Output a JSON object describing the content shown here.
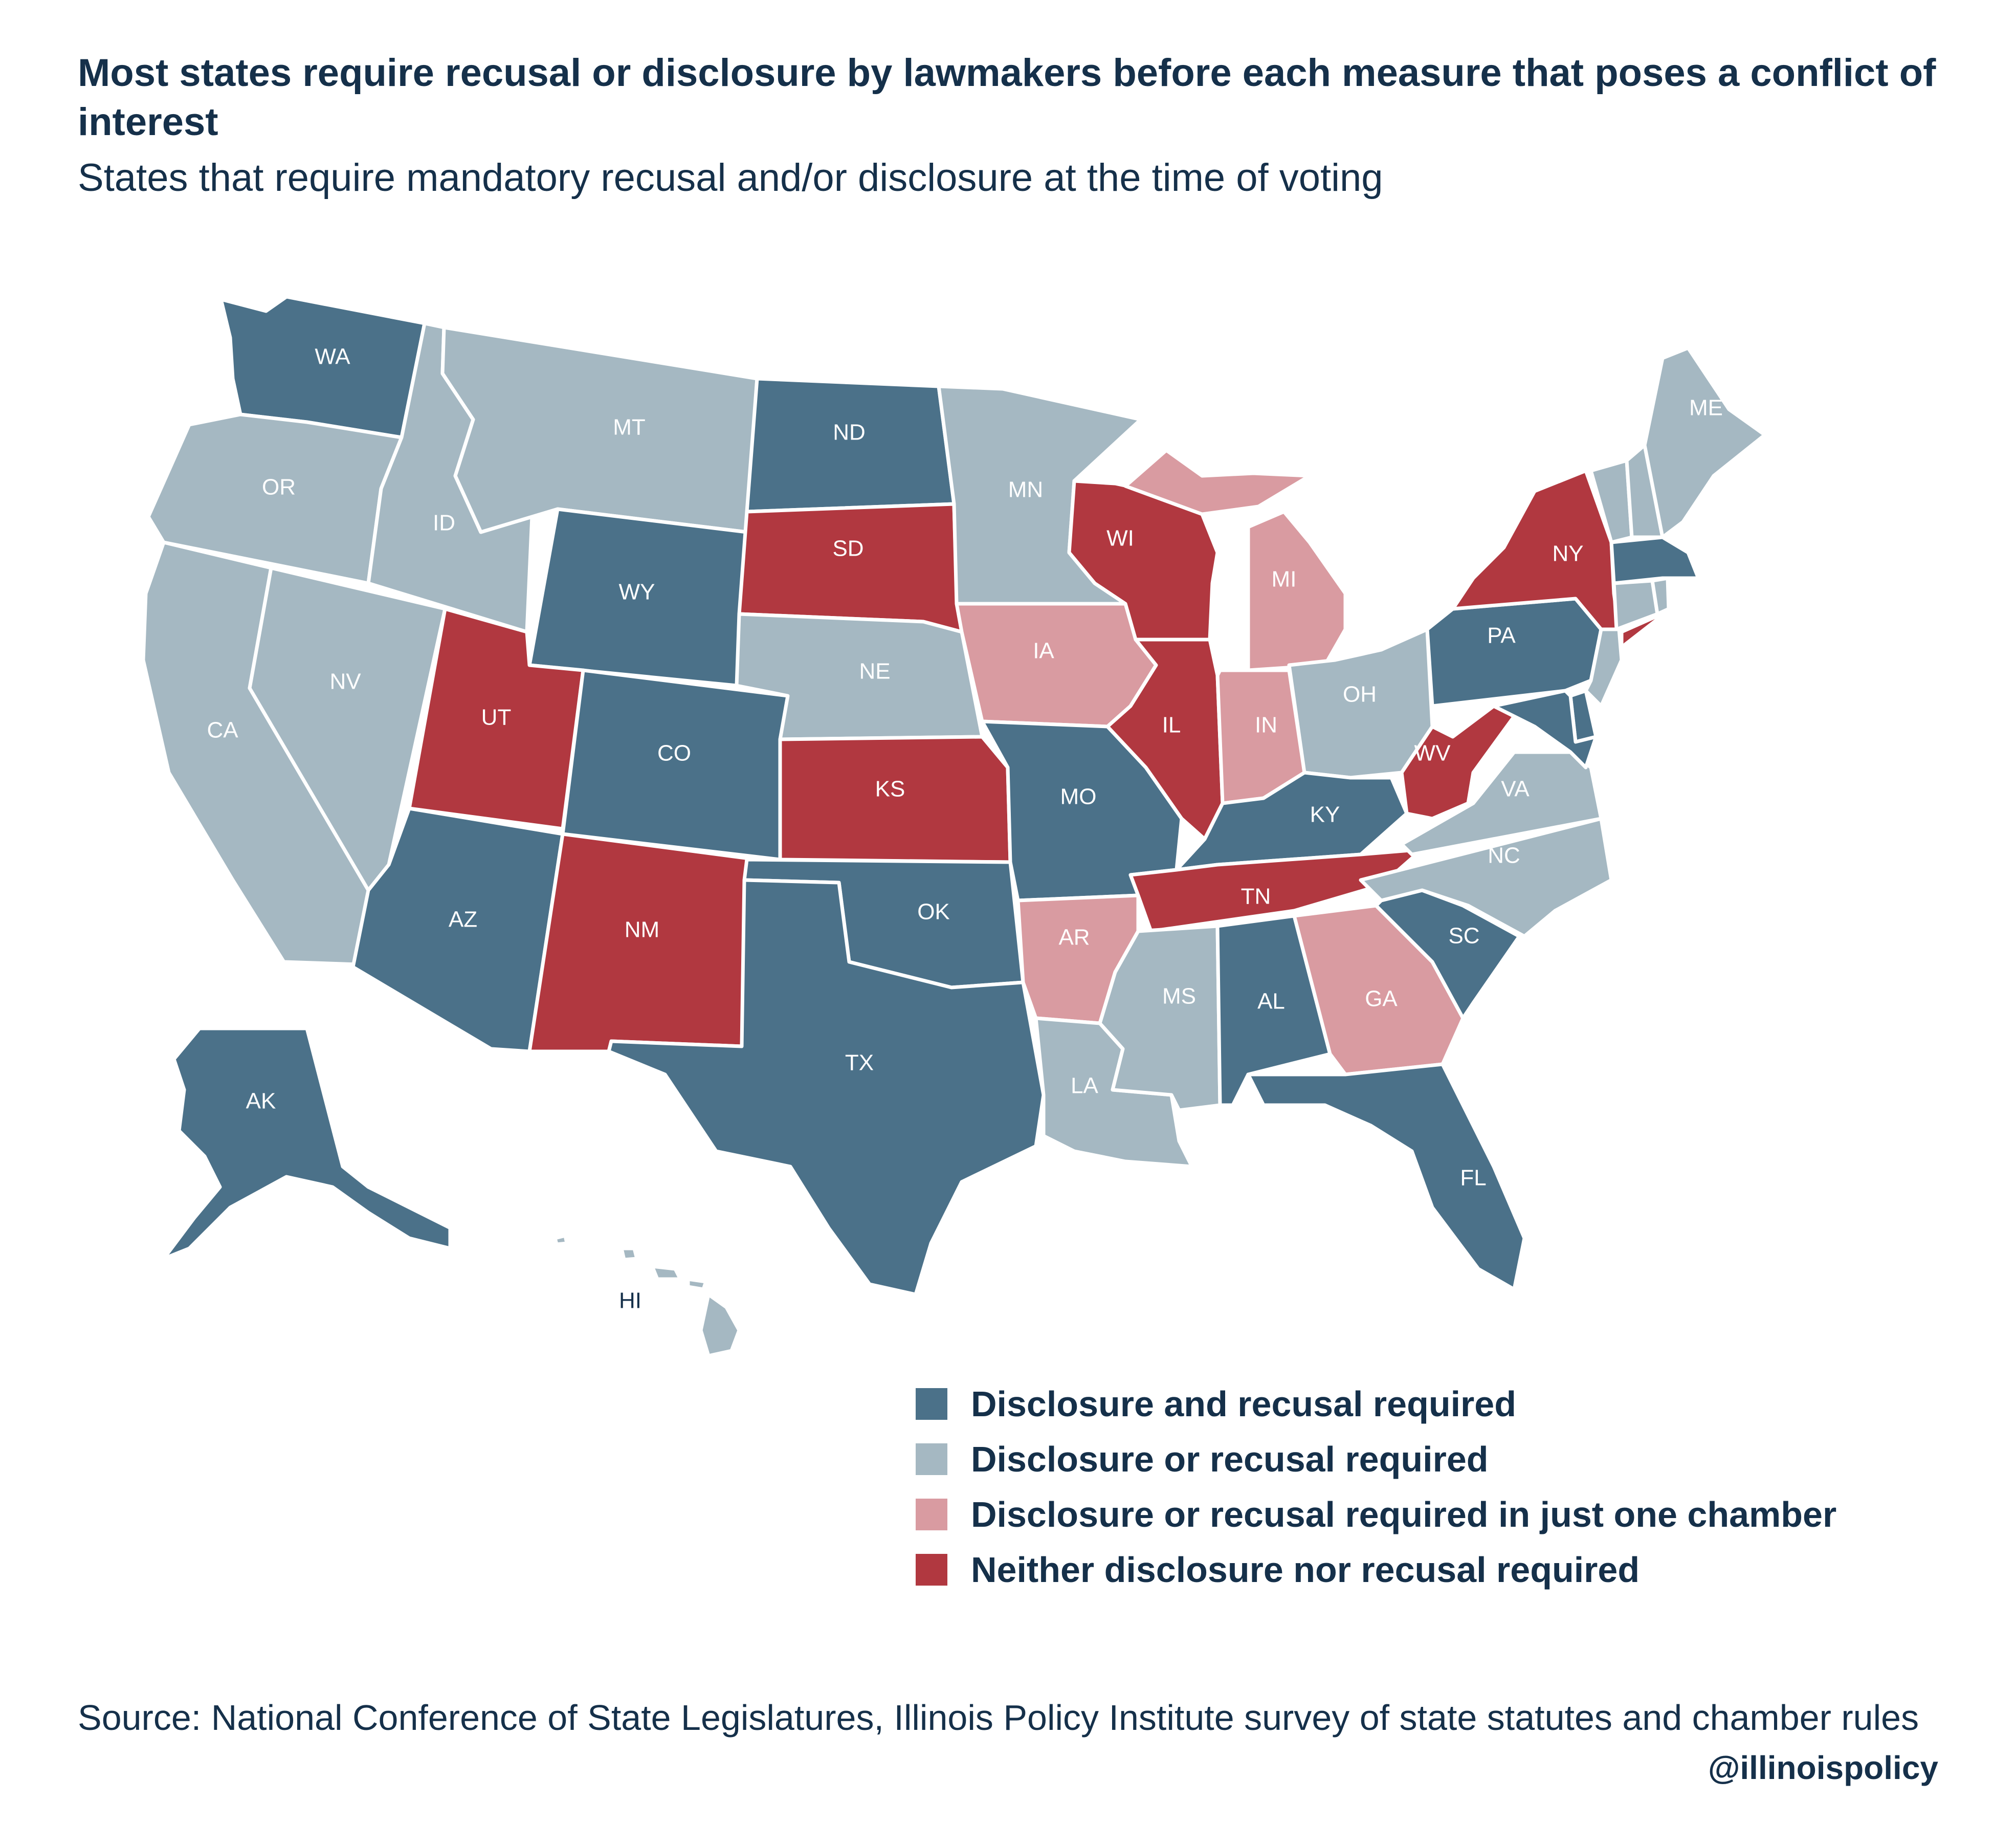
{
  "title": "Most states require recusal or disclosure by lawmakers before each measure that poses a conflict of interest",
  "subtitle": "States that require mandatory recusal and/or disclosure at the time of voting",
  "colors": {
    "both": "#4b7189",
    "either": "#a5b8c2",
    "one_chamber": "#d99ba1",
    "neither": "#b13840",
    "text": "#15304a"
  },
  "legend": [
    {
      "key": "both",
      "label": "Disclosure and recusal required"
    },
    {
      "key": "either",
      "label": "Disclosure or recusal required"
    },
    {
      "key": "one_chamber",
      "label": "Disclosure or recusal required in just one chamber"
    },
    {
      "key": "neither",
      "label": "Neither disclosure nor recusal required"
    }
  ],
  "states": [
    {
      "abbr": "WA",
      "category": "both"
    },
    {
      "abbr": "OR",
      "category": "either"
    },
    {
      "abbr": "CA",
      "category": "either"
    },
    {
      "abbr": "NV",
      "category": "either"
    },
    {
      "abbr": "ID",
      "category": "either"
    },
    {
      "abbr": "MT",
      "category": "either"
    },
    {
      "abbr": "WY",
      "category": "both"
    },
    {
      "abbr": "UT",
      "category": "neither"
    },
    {
      "abbr": "AZ",
      "category": "both"
    },
    {
      "abbr": "CO",
      "category": "both"
    },
    {
      "abbr": "NM",
      "category": "neither"
    },
    {
      "abbr": "ND",
      "category": "both"
    },
    {
      "abbr": "SD",
      "category": "neither"
    },
    {
      "abbr": "NE",
      "category": "either"
    },
    {
      "abbr": "KS",
      "category": "neither"
    },
    {
      "abbr": "OK",
      "category": "both"
    },
    {
      "abbr": "TX",
      "category": "both"
    },
    {
      "abbr": "MN",
      "category": "either"
    },
    {
      "abbr": "IA",
      "category": "one_chamber"
    },
    {
      "abbr": "MO",
      "category": "both"
    },
    {
      "abbr": "AR",
      "category": "one_chamber"
    },
    {
      "abbr": "LA",
      "category": "either"
    },
    {
      "abbr": "WI",
      "category": "neither"
    },
    {
      "abbr": "IL",
      "category": "neither"
    },
    {
      "abbr": "MI",
      "category": "one_chamber"
    },
    {
      "abbr": "IN",
      "category": "one_chamber"
    },
    {
      "abbr": "OH",
      "category": "either"
    },
    {
      "abbr": "KY",
      "category": "both"
    },
    {
      "abbr": "TN",
      "category": "neither"
    },
    {
      "abbr": "MS",
      "category": "either"
    },
    {
      "abbr": "AL",
      "category": "both"
    },
    {
      "abbr": "GA",
      "category": "one_chamber"
    },
    {
      "abbr": "FL",
      "category": "both"
    },
    {
      "abbr": "SC",
      "category": "both"
    },
    {
      "abbr": "NC",
      "category": "either"
    },
    {
      "abbr": "VA",
      "category": "either"
    },
    {
      "abbr": "WV",
      "category": "neither"
    },
    {
      "abbr": "PA",
      "category": "both"
    },
    {
      "abbr": "NY",
      "category": "neither"
    },
    {
      "abbr": "ME",
      "category": "either"
    },
    {
      "abbr": "VT",
      "category": "either"
    },
    {
      "abbr": "NH",
      "category": "either"
    },
    {
      "abbr": "MA",
      "category": "both"
    },
    {
      "abbr": "CT",
      "category": "either"
    },
    {
      "abbr": "RI",
      "category": "either"
    },
    {
      "abbr": "NJ",
      "category": "either"
    },
    {
      "abbr": "DE",
      "category": "both"
    },
    {
      "abbr": "MD",
      "category": "both"
    },
    {
      "abbr": "AK",
      "category": "both"
    },
    {
      "abbr": "HI",
      "category": "either"
    }
  ],
  "source": "Source: National Conference of State Legislatures, Illinois Policy Institute survey of state statutes and chamber rules",
  "handle": "@illinoispolicy"
}
